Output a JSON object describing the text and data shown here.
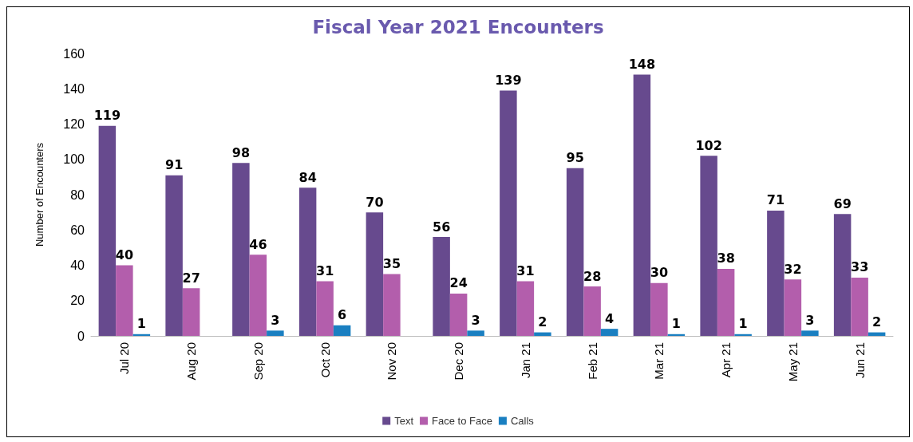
{
  "chart_data": {
    "type": "bar",
    "title": "Fiscal Year 2021 Encounters",
    "ylabel": "Number of Encounters",
    "categories": [
      "Jul 20",
      "Aug 20",
      "Sep 20",
      "Oct 20",
      "Nov 20",
      "Dec 20",
      "Jan 21",
      "Feb 21",
      "Mar 21",
      "Apr 21",
      "May 21",
      "Jun 21"
    ],
    "series": [
      {
        "name": "Text",
        "color": "#674a8e",
        "values": [
          119,
          91,
          98,
          84,
          70,
          56,
          139,
          95,
          148,
          102,
          71,
          69
        ]
      },
      {
        "name": "Face to Face",
        "color": "#b35eac",
        "values": [
          40,
          27,
          46,
          31,
          35,
          24,
          31,
          28,
          30,
          38,
          32,
          33
        ]
      },
      {
        "name": "Calls",
        "color": "#1a7fc1",
        "values": [
          1,
          null,
          3,
          6,
          null,
          3,
          2,
          4,
          1,
          1,
          3,
          2
        ]
      }
    ],
    "ylim": [
      0,
      160
    ],
    "yticks": [
      0,
      20,
      40,
      60,
      80,
      100,
      120,
      140,
      160
    ],
    "grid": false,
    "legend": "bottom",
    "data_labels": true
  }
}
